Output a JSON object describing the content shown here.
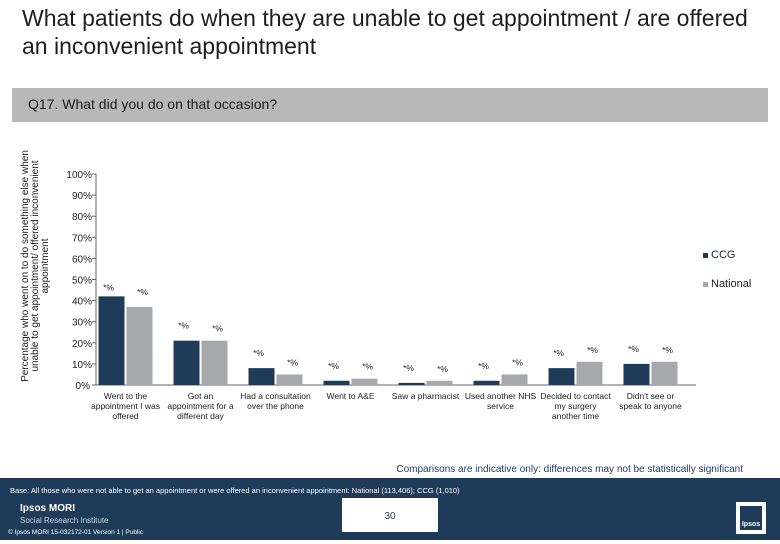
{
  "page": {
    "title": "What patients do when they are unable to get appointment  / are offered an inconvenient appointment",
    "question": "Q17. What did you do on that occasion?",
    "y_axis_label": "Percentage who went on to do something else when unable to get appointment/ offered inconvenient appointment",
    "note": "Comparisons are indicative only: differences may not be statistically significant",
    "base": "Base: All those who were not able to get an appointment or were offered an inconvenient appointment: National (113,406); CCG (1,010)",
    "page_number": "30",
    "brand_name": "Ipsos MORI",
    "brand_sub": "Social Research Institute",
    "copyright": "© Ipsos MORI     15-032172-01 Version 1 | Public",
    "logo_text": "Ipsos"
  },
  "chart_data": {
    "type": "bar",
    "ylim": [
      0,
      100
    ],
    "yticks": [
      "0%",
      "10%",
      "20%",
      "30%",
      "40%",
      "50%",
      "60%",
      "70%",
      "80%",
      "90%",
      "100%"
    ],
    "categories": [
      [
        "Went to the",
        "appointment I was",
        "offered"
      ],
      [
        "Got an",
        "appointment for a",
        "different day"
      ],
      [
        "Had a consultation",
        "over the phone"
      ],
      [
        "Went to A&E"
      ],
      [
        "Saw a pharmacist"
      ],
      [
        "Used another NHS",
        "service"
      ],
      [
        "Decided to contact",
        "my surgery",
        "another time"
      ],
      [
        "Didn't see or",
        "speak to anyone"
      ]
    ],
    "series": [
      {
        "name": "CCG",
        "color": "#1f3b5a",
        "values": [
          42,
          21,
          8,
          2,
          1,
          2,
          8,
          10
        ],
        "labels": [
          "*%",
          "*%",
          "*%",
          "*%",
          "*%",
          "*%",
          "*%",
          "*%"
        ]
      },
      {
        "name": "National",
        "color": "#a6a8ab",
        "values": [
          37,
          21,
          5,
          3,
          2,
          5,
          11,
          11
        ],
        "labels": [
          "*%",
          "*%",
          "*%",
          "*%",
          "*%",
          "*%",
          "*%",
          "*%"
        ]
      }
    ],
    "legend_position": "right"
  }
}
